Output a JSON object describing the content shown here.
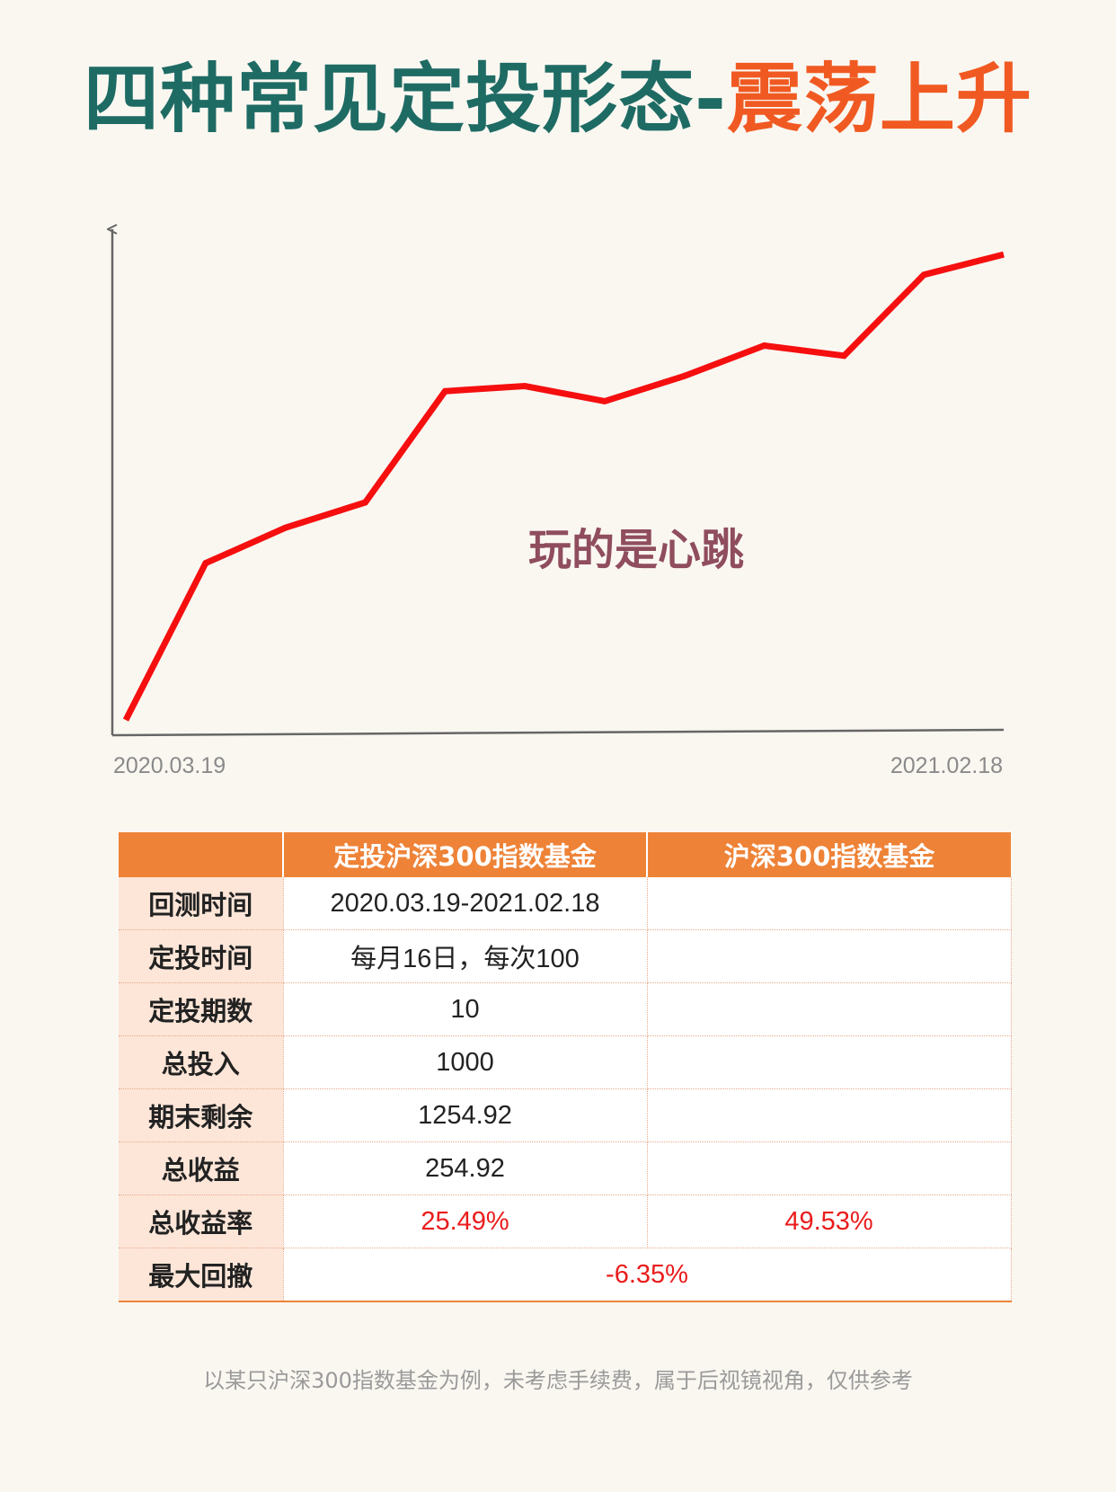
{
  "title": {
    "main": "四种常见定投形态-",
    "accent": "震荡上升"
  },
  "chart_data": {
    "type": "line",
    "x_start_label": "2020.03.19",
    "x_end_label": "2021.02.18",
    "series": [
      {
        "values": [
          0.03,
          0.34,
          0.41,
          0.46,
          0.68,
          0.69,
          0.66,
          0.71,
          0.77,
          0.75,
          0.91,
          0.95
        ]
      }
    ],
    "ylim": [
      0,
      1
    ],
    "annotation": "玩的是心跳",
    "line_color": "#f50f0f",
    "axis_color": "#666666",
    "grid": false,
    "legend": "none"
  },
  "table": {
    "headers": [
      "",
      "定投沪深300指数基金",
      "沪深300指数基金"
    ],
    "rows": [
      {
        "label": "回测时间",
        "col1": "2020.03.19-2021.02.18",
        "col2": ""
      },
      {
        "label": "定投时间",
        "col1": "每月16日，每次100",
        "col2": ""
      },
      {
        "label": "定投期数",
        "col1": "10",
        "col2": ""
      },
      {
        "label": "总投入",
        "col1": "1000",
        "col2": ""
      },
      {
        "label": "期末剩余",
        "col1": "1254.92",
        "col2": ""
      },
      {
        "label": "总收益",
        "col1": "254.92",
        "col2": ""
      },
      {
        "label": "总收益率",
        "col1": "25.49%",
        "col2": "49.53%"
      },
      {
        "label": "最大回撤",
        "merged": "-6.35%"
      }
    ]
  },
  "footnote": "以某只沪深300指数基金为例，未考虑手续费，属于后视镜视角，仅供参考"
}
